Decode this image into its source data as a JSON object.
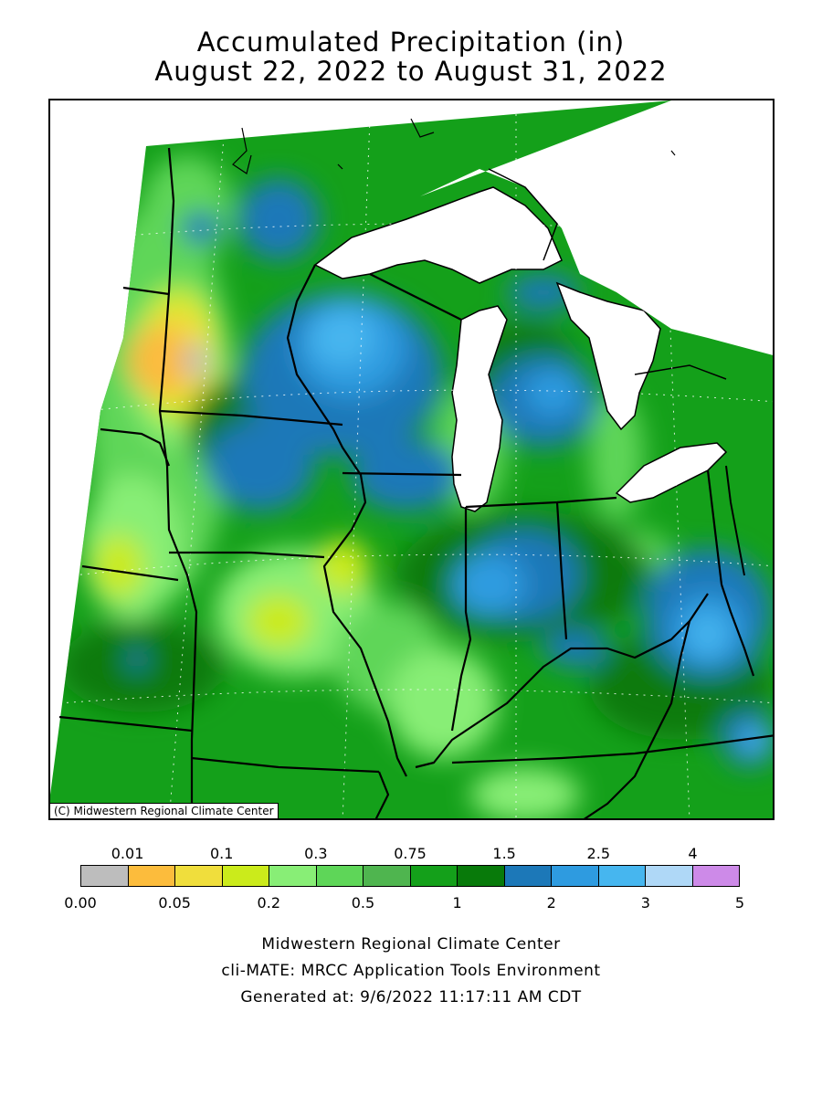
{
  "title": {
    "line1": "Accumulated Precipitation (in)",
    "line2": "August 22, 2022 to August 31, 2022"
  },
  "map": {
    "copyright": "(C) Midwestern Regional Climate Center",
    "units": "in"
  },
  "legend": {
    "top_labels": [
      "0.01",
      "0.1",
      "0.3",
      "0.75",
      "1.5",
      "2.5",
      "4"
    ],
    "bottom_labels": [
      "0.00",
      "0.05",
      "0.2",
      "0.5",
      "1",
      "2",
      "3",
      "5"
    ],
    "colors": [
      "#bdbdbd",
      "#fcbc3c",
      "#f0de3c",
      "#cbeb1b",
      "#88ee76",
      "#5ed658",
      "#4fb54f",
      "#14a01a",
      "#087a0a",
      "#1c78b8",
      "#2e9be0",
      "#46b6ef",
      "#afd8f7",
      "#cd8ae8"
    ]
  },
  "footer": {
    "line1": "Midwestern Regional Climate Center",
    "line2": "cli-MATE: MRCC Application Tools Environment",
    "line3": "Generated at: 9/6/2022 11:17:11 AM CDT"
  }
}
